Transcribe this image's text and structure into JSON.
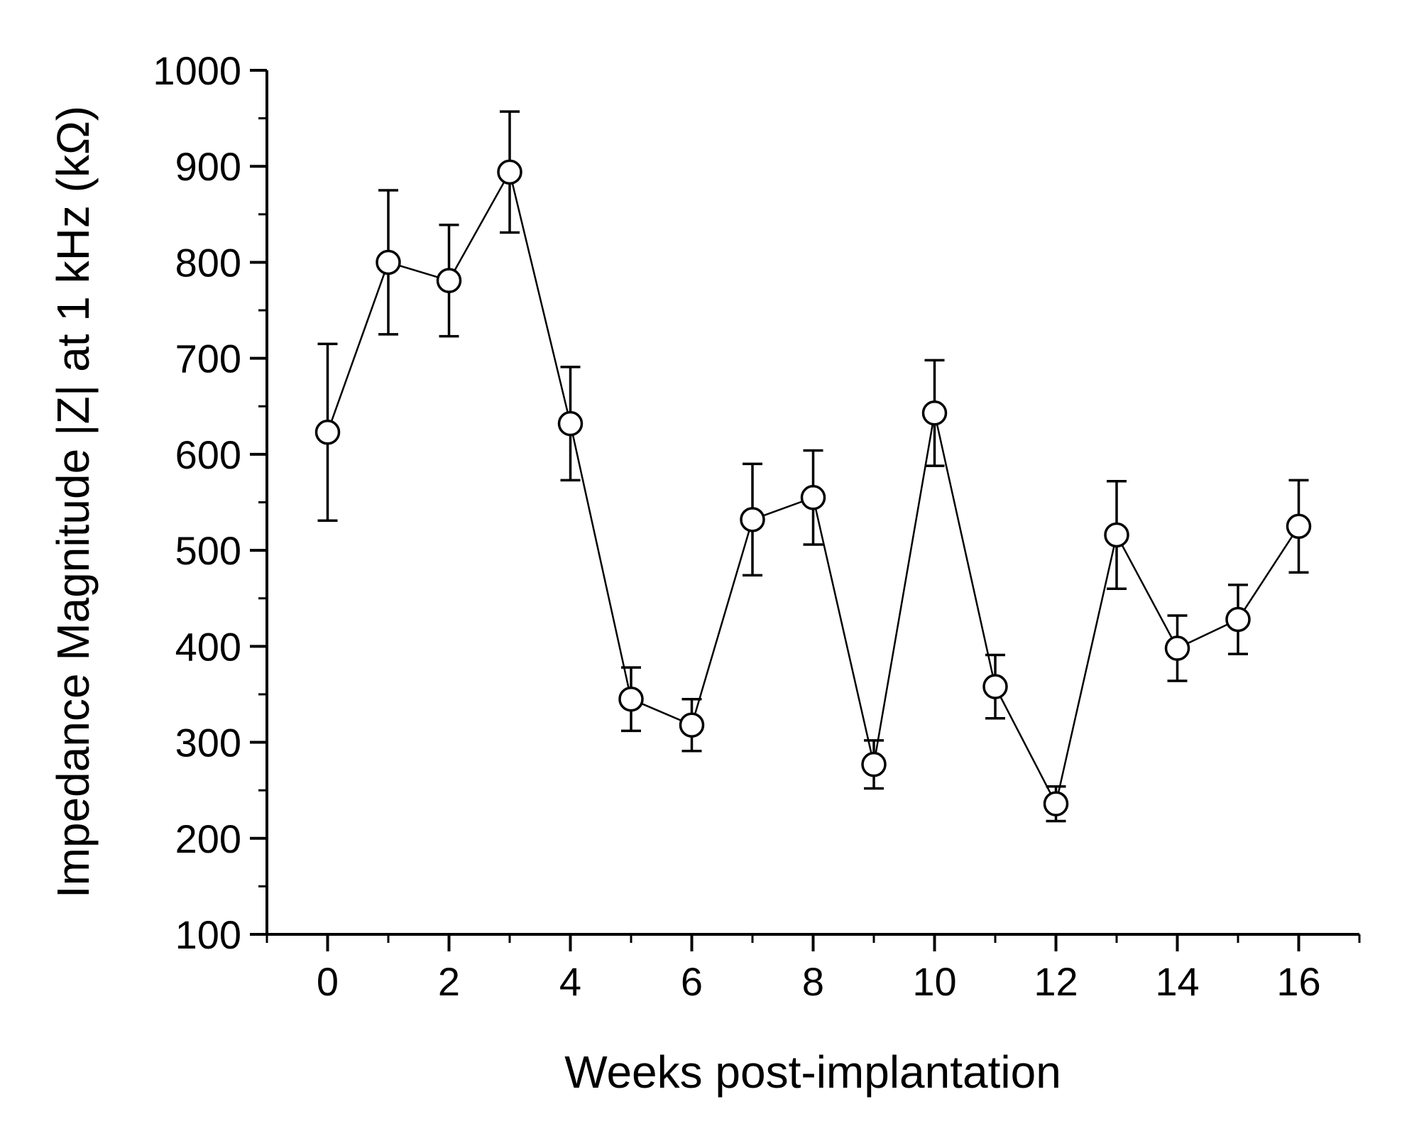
{
  "chart_data": {
    "type": "line",
    "title": "",
    "xlabel": "Weeks post-implantation",
    "ylabel": "Impedance Magnitude |Z| at 1 kHz (kΩ)",
    "xlim": [
      -1,
      17
    ],
    "ylim": [
      100,
      1000
    ],
    "x_ticks": [
      0,
      2,
      4,
      6,
      8,
      10,
      12,
      14,
      16
    ],
    "x_tick_labels": [
      "0",
      "2",
      "4",
      "6",
      "8",
      "10",
      "12",
      "14",
      "16"
    ],
    "y_ticks": [
      100,
      200,
      300,
      400,
      500,
      600,
      700,
      800,
      900,
      1000
    ],
    "y_tick_labels": [
      "100",
      "200",
      "300",
      "400",
      "500",
      "600",
      "700",
      "800",
      "900",
      "1000"
    ],
    "grid": false,
    "marker": "open-circle",
    "series": [
      {
        "x": [
          0,
          1,
          2,
          3,
          4,
          5,
          6,
          7,
          8,
          9,
          10,
          11,
          12,
          13,
          14,
          15,
          16
        ],
        "y": [
          623,
          800,
          781,
          894,
          632,
          345,
          318,
          532,
          555,
          277,
          643,
          358,
          236,
          516,
          398,
          428,
          525
        ],
        "error": [
          92,
          75,
          58,
          63,
          59,
          33,
          27,
          58,
          49,
          25,
          55,
          33,
          18,
          56,
          34,
          36,
          48
        ]
      }
    ]
  }
}
